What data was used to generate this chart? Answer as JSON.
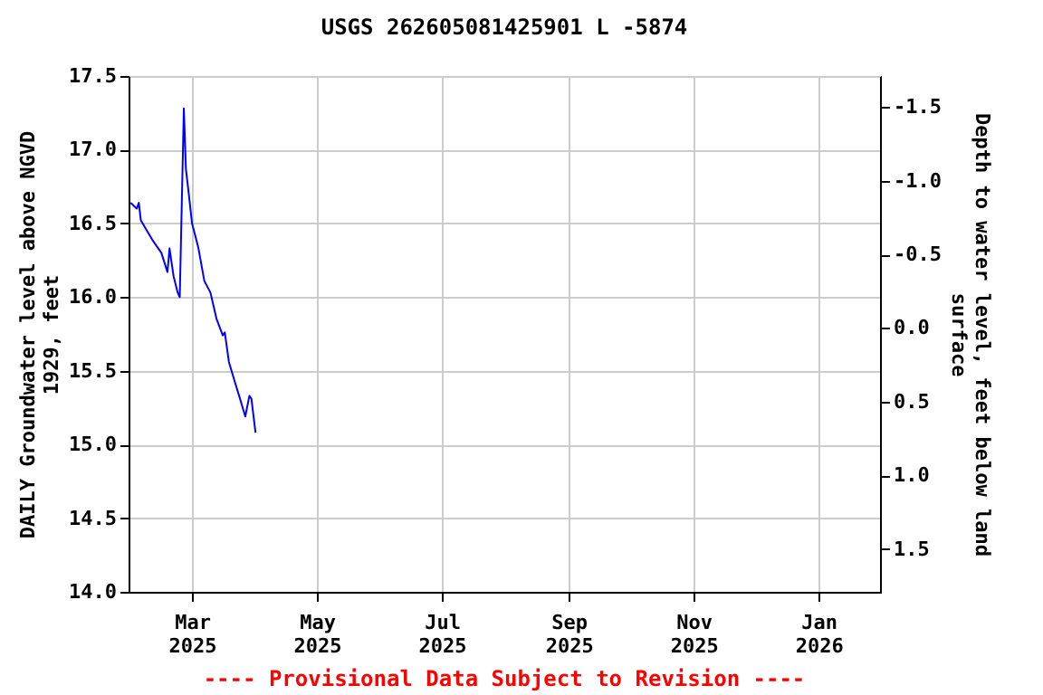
{
  "chart_data": {
    "type": "line",
    "title": "USGS 262605081425901 L  -5874",
    "xlabel": null,
    "ylabel": "DAILY Groundwater level above NGVD 1929, feet",
    "y2label": "Depth to water level, feet below land surface",
    "x": [
      "2025-01-30",
      "2025-02-02",
      "2025-02-03",
      "2025-02-04",
      "2025-02-10",
      "2025-02-14",
      "2025-02-17",
      "2025-02-18",
      "2025-02-20",
      "2025-02-22",
      "2025-02-23",
      "2025-02-24",
      "2025-02-25",
      "2025-02-26",
      "2025-02-27",
      "2025-03-01",
      "2025-03-04",
      "2025-03-07",
      "2025-03-10",
      "2025-03-13",
      "2025-03-16",
      "2025-03-17",
      "2025-03-19",
      "2025-03-22",
      "2025-03-24",
      "2025-03-27",
      "2025-03-29",
      "2025-03-30",
      "2025-04-01"
    ],
    "series": [
      {
        "color": "#0000ff",
        "values": [
          16.64,
          16.6,
          16.64,
          16.52,
          16.38,
          16.3,
          16.17,
          16.33,
          16.14,
          16.03,
          16.0,
          16.64,
          17.28,
          16.87,
          16.75,
          16.5,
          16.34,
          16.11,
          16.03,
          15.85,
          15.74,
          15.76,
          15.56,
          15.42,
          15.33,
          15.19,
          15.33,
          15.31,
          15.08
        ]
      }
    ],
    "xlim": [
      "2025-01-29",
      "2026-01-31"
    ],
    "xticks": [
      {
        "value": "2025-03-01",
        "label": "Mar 2025"
      },
      {
        "value": "2025-05-01",
        "label": "May 2025"
      },
      {
        "value": "2025-07-01",
        "label": "Jul 2025"
      },
      {
        "value": "2025-09-01",
        "label": "Sep 2025"
      },
      {
        "value": "2025-11-01",
        "label": "Nov 2025"
      },
      {
        "value": "2026-01-01",
        "label": "Jan 2026"
      }
    ],
    "ylim": [
      14.0,
      17.5
    ],
    "yticks": [
      {
        "value": 14,
        "label": "14.0"
      },
      {
        "value": 14.5,
        "label": "14.5"
      },
      {
        "value": 15,
        "label": "15.0"
      },
      {
        "value": 15.5,
        "label": "15.5"
      },
      {
        "value": 16,
        "label": "16.0"
      },
      {
        "value": 16.5,
        "label": "16.5"
      },
      {
        "value": 17,
        "label": "17.0"
      },
      {
        "value": 17.5,
        "label": "17.5"
      }
    ],
    "y2lim": [
      1.79,
      -1.71
    ],
    "y2ticks": [
      {
        "value": -1.5,
        "label": "-1.5"
      },
      {
        "value": -1,
        "label": "-1.0"
      },
      {
        "value": -0.5,
        "label": "-0.5"
      },
      {
        "value": 0,
        "label": "0.0"
      },
      {
        "value": 0.5,
        "label": "0.5"
      },
      {
        "value": 1,
        "label": "1.0"
      },
      {
        "value": 1.5,
        "label": "1.5"
      }
    ],
    "grid": true,
    "marker": "none",
    "line_style": "solid",
    "annotations": [
      "---- Provisional Data Subject to Revision ----"
    ]
  }
}
